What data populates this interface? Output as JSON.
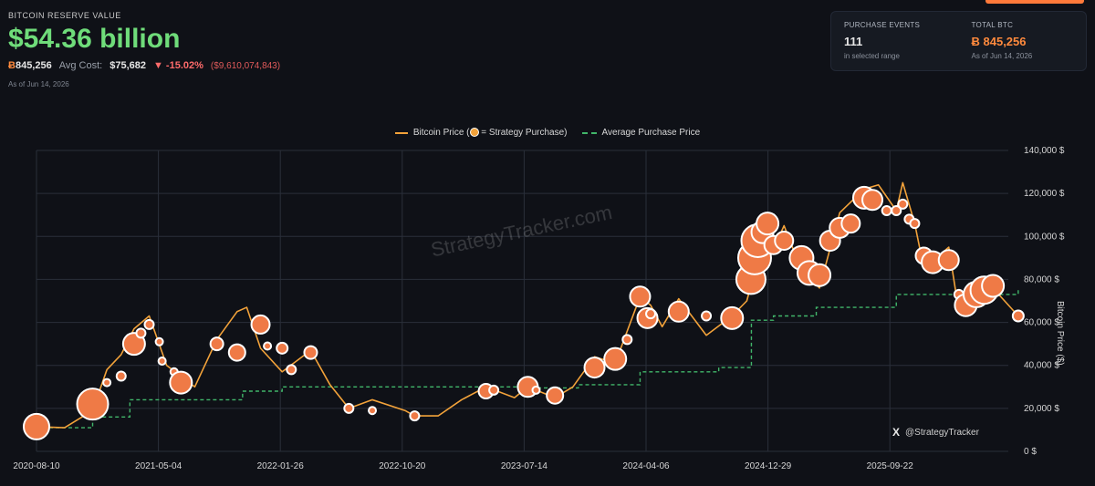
{
  "header": {
    "kicker": "BITCOIN RESERVE VALUE",
    "reserve_value": "$54.36 billion",
    "btc_symbol": "Ƀ",
    "btc_held": "845,256",
    "avg_cost_label": "Avg Cost:",
    "avg_cost": "$75,682",
    "change_pct": "▼ -15.02%",
    "change_abs": "($9,610,074,843)",
    "as_of": "As of Jun 14, 2026"
  },
  "panel": {
    "events_label": "PURCHASE EVENTS",
    "events_value": "111",
    "events_sub": "in selected range",
    "total_label": "TOTAL BTC",
    "total_value": "Ƀ 845,256",
    "total_sub": "As of Jun 14, 2026"
  },
  "legend": {
    "price": "Bitcoin Price (",
    "price_tail": " = Strategy Purchase)",
    "avg": "Average Purchase Price"
  },
  "watermark": "StrategyTracker.com",
  "social": {
    "icon": "X",
    "handle": "@StrategyTracker"
  },
  "colors": {
    "price_line": "#f2a23a",
    "bubble": "#ef7a46",
    "avg_line": "#41b66a",
    "grid": "#2a2f3a",
    "text": "#d6d6d6"
  },
  "chart_data": {
    "type": "line",
    "ylabel": "Bitcoin Price ($)",
    "ylim": [
      0,
      140000
    ],
    "yticks": [
      "0 $",
      "20,000 $",
      "40,000 $",
      "60,000 $",
      "80,000 $",
      "100,000 $",
      "120,000 $",
      "140,000 $"
    ],
    "xticks": [
      "2020-08-10",
      "2021-05-04",
      "2022-01-26",
      "2022-10-20",
      "2023-07-14",
      "2024-04-06",
      "2024-12-29",
      "2025-09-22"
    ],
    "grid": true,
    "legend_position": "top-center",
    "price_series": [
      [
        "2020-08-10",
        11500
      ],
      [
        "2020-10-10",
        11000
      ],
      [
        "2020-12-10",
        19000
      ],
      [
        "2021-01-10",
        38000
      ],
      [
        "2021-02-10",
        45000
      ],
      [
        "2021-03-10",
        57000
      ],
      [
        "2021-04-12",
        63000
      ],
      [
        "2021-05-20",
        40000
      ],
      [
        "2021-07-20",
        30000
      ],
      [
        "2021-09-06",
        52000
      ],
      [
        "2021-10-20",
        65000
      ],
      [
        "2021-11-10",
        67000
      ],
      [
        "2021-12-10",
        48000
      ],
      [
        "2022-01-26",
        37000
      ],
      [
        "2022-03-29",
        47000
      ],
      [
        "2022-05-10",
        31000
      ],
      [
        "2022-06-20",
        20000
      ],
      [
        "2022-08-10",
        24000
      ],
      [
        "2022-10-20",
        19000
      ],
      [
        "2022-11-10",
        16500
      ],
      [
        "2022-12-31",
        16500
      ],
      [
        "2023-02-20",
        24000
      ],
      [
        "2023-04-14",
        30000
      ],
      [
        "2023-06-15",
        25000
      ],
      [
        "2023-07-14",
        30000
      ],
      [
        "2023-09-11",
        25000
      ],
      [
        "2023-10-20",
        30000
      ],
      [
        "2023-12-06",
        44000
      ],
      [
        "2024-01-20",
        41000
      ],
      [
        "2024-03-14",
        72000
      ],
      [
        "2024-04-06",
        68000
      ],
      [
        "2024-05-01",
        58000
      ],
      [
        "2024-06-06",
        71000
      ],
      [
        "2024-08-05",
        54000
      ],
      [
        "2024-09-30",
        63000
      ],
      [
        "2024-11-01",
        70000
      ],
      [
        "2024-12-16",
        106000
      ],
      [
        "2024-12-29",
        94000
      ],
      [
        "2025-01-21",
        105000
      ],
      [
        "2025-02-28",
        84000
      ],
      [
        "2025-04-08",
        76000
      ],
      [
        "2025-05-22",
        111000
      ],
      [
        "2025-07-14",
        122000
      ],
      [
        "2025-08-14",
        124000
      ],
      [
        "2025-09-22",
        112000
      ],
      [
        "2025-10-06",
        125000
      ],
      [
        "2025-11-01",
        106000
      ],
      [
        "2025-11-21",
        85000
      ],
      [
        "2026-01-14",
        95000
      ],
      [
        "2026-02-05",
        65000
      ],
      [
        "2026-03-15",
        70000
      ],
      [
        "2026-04-20",
        76000
      ],
      [
        "2026-06-14",
        63000
      ]
    ],
    "avg_purchase_series": [
      [
        "2020-08-10",
        11000
      ],
      [
        "2020-12-10",
        16000
      ],
      [
        "2021-03-01",
        24000
      ],
      [
        "2021-11-01",
        28000
      ],
      [
        "2022-01-26",
        30000
      ],
      [
        "2022-10-20",
        30000
      ],
      [
        "2023-07-14",
        29500
      ],
      [
        "2023-11-01",
        31000
      ],
      [
        "2024-03-14",
        37000
      ],
      [
        "2024-09-01",
        39000
      ],
      [
        "2024-11-11",
        61000
      ],
      [
        "2024-12-29",
        63000
      ],
      [
        "2025-04-01",
        67000
      ],
      [
        "2025-09-22",
        73000
      ],
      [
        "2026-06-14",
        75682
      ]
    ],
    "purchases": [
      {
        "date": "2020-08-10",
        "price": 11500,
        "size": 14
      },
      {
        "date": "2020-12-10",
        "price": 22000,
        "size": 17
      },
      {
        "date": "2021-01-10",
        "price": 32000,
        "size": 4
      },
      {
        "date": "2021-02-10",
        "price": 35000,
        "size": 5
      },
      {
        "date": "2021-03-10",
        "price": 50000,
        "size": 12
      },
      {
        "date": "2021-03-25",
        "price": 55000,
        "size": 5
      },
      {
        "date": "2021-04-12",
        "price": 59000,
        "size": 5
      },
      {
        "date": "2021-05-04",
        "price": 51000,
        "size": 4
      },
      {
        "date": "2021-05-10",
        "price": 42000,
        "size": 4
      },
      {
        "date": "2021-06-05",
        "price": 37000,
        "size": 4
      },
      {
        "date": "2021-06-20",
        "price": 32000,
        "size": 12
      },
      {
        "date": "2021-09-06",
        "price": 50000,
        "size": 7
      },
      {
        "date": "2021-10-20",
        "price": 46000,
        "size": 9
      },
      {
        "date": "2021-12-10",
        "price": 59000,
        "size": 10
      },
      {
        "date": "2021-12-25",
        "price": 49000,
        "size": 4
      },
      {
        "date": "2022-01-26",
        "price": 48000,
        "size": 6
      },
      {
        "date": "2022-02-15",
        "price": 38000,
        "size": 5
      },
      {
        "date": "2022-03-29",
        "price": 46000,
        "size": 7
      },
      {
        "date": "2022-06-20",
        "price": 20000,
        "size": 5
      },
      {
        "date": "2022-08-10",
        "price": 19000,
        "size": 4
      },
      {
        "date": "2022-11-10",
        "price": 16500,
        "size": 5
      },
      {
        "date": "2023-04-14",
        "price": 28000,
        "size": 8
      },
      {
        "date": "2023-05-01",
        "price": 28500,
        "size": 5
      },
      {
        "date": "2023-07-14",
        "price": 30000,
        "size": 11
      },
      {
        "date": "2023-08-01",
        "price": 28500,
        "size": 4
      },
      {
        "date": "2023-09-11",
        "price": 26000,
        "size": 9
      },
      {
        "date": "2023-12-06",
        "price": 39000,
        "size": 11
      },
      {
        "date": "2024-01-20",
        "price": 43000,
        "size": 12
      },
      {
        "date": "2024-02-15",
        "price": 52000,
        "size": 5
      },
      {
        "date": "2024-03-14",
        "price": 72000,
        "size": 11
      },
      {
        "date": "2024-03-30",
        "price": 62000,
        "size": 11
      },
      {
        "date": "2024-04-06",
        "price": 64000,
        "size": 5
      },
      {
        "date": "2024-06-06",
        "price": 65000,
        "size": 11
      },
      {
        "date": "2024-08-05",
        "price": 63000,
        "size": 5
      },
      {
        "date": "2024-09-30",
        "price": 62000,
        "size": 12
      },
      {
        "date": "2024-11-10",
        "price": 80000,
        "size": 16
      },
      {
        "date": "2024-11-18",
        "price": 90000,
        "size": 18
      },
      {
        "date": "2024-11-25",
        "price": 98000,
        "size": 18
      },
      {
        "date": "2024-12-05",
        "price": 102000,
        "size": 12
      },
      {
        "date": "2024-12-16",
        "price": 106000,
        "size": 12
      },
      {
        "date": "2024-12-29",
        "price": 96000,
        "size": 10
      },
      {
        "date": "2025-01-21",
        "price": 98000,
        "size": 10
      },
      {
        "date": "2025-02-28",
        "price": 90000,
        "size": 13
      },
      {
        "date": "2025-03-17",
        "price": 83000,
        "size": 13
      },
      {
        "date": "2025-04-08",
        "price": 82000,
        "size": 12
      },
      {
        "date": "2025-05-01",
        "price": 98000,
        "size": 11
      },
      {
        "date": "2025-05-22",
        "price": 104000,
        "size": 11
      },
      {
        "date": "2025-06-15",
        "price": 106000,
        "size": 10
      },
      {
        "date": "2025-07-14",
        "price": 118000,
        "size": 12
      },
      {
        "date": "2025-08-01",
        "price": 117000,
        "size": 11
      },
      {
        "date": "2025-09-01",
        "price": 112000,
        "size": 5
      },
      {
        "date": "2025-09-22",
        "price": 112000,
        "size": 5
      },
      {
        "date": "2025-10-06",
        "price": 115000,
        "size": 5
      },
      {
        "date": "2025-10-20",
        "price": 108000,
        "size": 5
      },
      {
        "date": "2025-11-01",
        "price": 106000,
        "size": 5
      },
      {
        "date": "2025-11-21",
        "price": 91000,
        "size": 9
      },
      {
        "date": "2025-12-10",
        "price": 88000,
        "size": 12
      },
      {
        "date": "2026-01-14",
        "price": 89000,
        "size": 11
      },
      {
        "date": "2026-02-05",
        "price": 73000,
        "size": 5
      },
      {
        "date": "2026-02-20",
        "price": 68000,
        "size": 12
      },
      {
        "date": "2026-03-15",
        "price": 73000,
        "size": 14
      },
      {
        "date": "2026-04-01",
        "price": 75000,
        "size": 15
      },
      {
        "date": "2026-04-20",
        "price": 77000,
        "size": 12
      },
      {
        "date": "2026-06-14",
        "price": 63000,
        "size": 6
      }
    ]
  }
}
